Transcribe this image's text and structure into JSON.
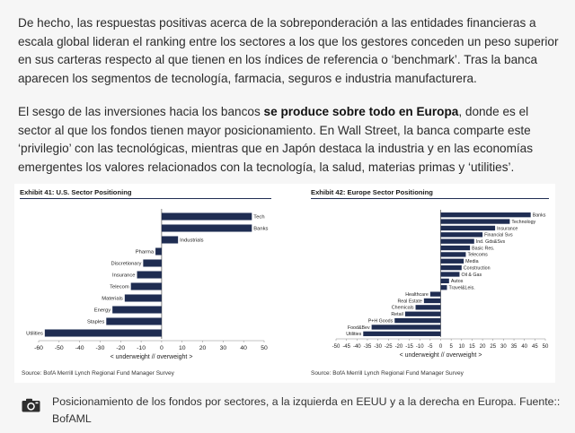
{
  "article": {
    "paragraph1": "De hecho, las respuestas positivas acerca de la sobreponderación a las entidades financieras a escala global lideran el ranking entre los sectores a los que los gestores conceden un peso superior en sus carteras respecto al que tienen en los índices de referencia o ‘benchmark’. Tras la banca aparecen los segmentos de tecnología, farmacia, seguros e industria manufacturera.",
    "paragraph2_before": "El sesgo de las inversiones hacia los bancos ",
    "paragraph2_bold": "se produce sobre todo en Europa",
    "paragraph2_after": ", donde es el sector al que los fondos tienen mayor posicionamiento. En Wall Street, la banca comparte este ‘privilegio’ con las tecnológicas, mientras que en Japón destaca la industria y en las economías emergentes los valores relacionados con la tecnología, la salud, materias primas y ‘utilities’.",
    "caption": "Posicionamiento de los fondos por sectores, a la izquierda en EEUU y a la derecha en Europa. Fuente:: BofAML",
    "caption_icon": "camera-icon"
  },
  "chart_data": [
    {
      "type": "bar",
      "orientation": "horizontal",
      "title": "Exhibit 41: U.S. Sector Positioning",
      "categories": [
        "Tech",
        "Banks",
        "Industrials",
        "Pharma",
        "Discretionary",
        "Insurance",
        "Telecom",
        "Materials",
        "Energy",
        "Staples",
        "Utilities"
      ],
      "values": [
        44,
        44,
        8,
        -3,
        -9,
        -12,
        -15,
        -18,
        -24,
        -27,
        -57
      ],
      "xlim": [
        -60,
        50
      ],
      "xticks": [
        -60,
        -50,
        -40,
        -30,
        -20,
        -10,
        0,
        10,
        20,
        30,
        40,
        50
      ],
      "xlabel": "< underweight // overweight >",
      "source": "Source:  BofA Merrill Lynch Regional Fund Manager Survey",
      "bar_color": "#1f2d52"
    },
    {
      "type": "bar",
      "orientation": "horizontal",
      "title": "Exhibit 42: Europe Sector Positioning",
      "categories": [
        "Banks",
        "Technology",
        "Insurance",
        "Financial Svs",
        "Ind. Gds&Svs",
        "Basic Res.",
        "Telecoms",
        "Media",
        "Construction",
        "Oil & Gas",
        "Autos",
        "Travel&Leis.",
        "Healthcare",
        "Real Estate",
        "Chemicals",
        "Retail",
        "P+H Goods",
        "Food&Bev",
        "Utilities"
      ],
      "values": [
        43,
        33,
        26,
        20,
        16,
        14,
        12,
        11,
        10,
        9,
        4,
        3,
        -5,
        -8,
        -12,
        -17,
        -22,
        -33,
        -37
      ],
      "xlim": [
        -50,
        50
      ],
      "xticks": [
        -50,
        -45,
        -40,
        -35,
        -30,
        -25,
        -20,
        -15,
        -10,
        -5,
        0,
        5,
        10,
        15,
        20,
        25,
        30,
        35,
        40,
        45,
        50
      ],
      "xlabel": "< underweight // overweight >",
      "source": "Source:  BofA Merrill Lynch Regional Fund Manager Survey",
      "bar_color": "#1f2d52"
    }
  ]
}
